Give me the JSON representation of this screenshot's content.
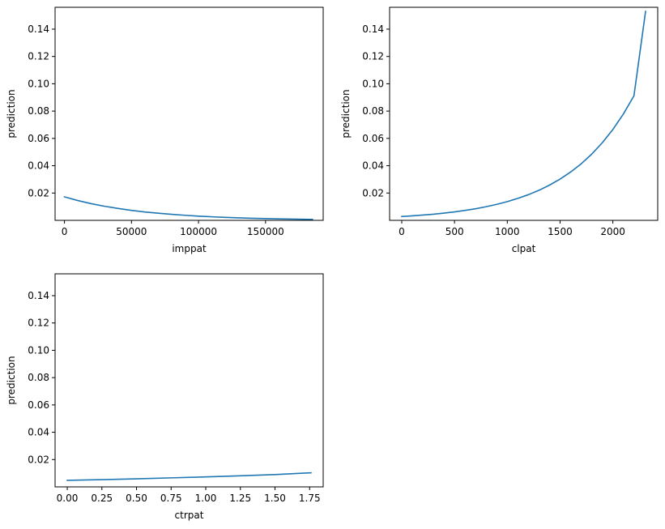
{
  "figure": {
    "line_color": "#1f77b4",
    "background": "#ffffff"
  },
  "chart_data": [
    {
      "type": "line",
      "title": "",
      "xlabel": "imppat",
      "ylabel": "prediction",
      "xlim": [
        -7000,
        193000
      ],
      "ylim": [
        0.0,
        0.156
      ],
      "xticks": [
        0,
        50000,
        100000,
        150000
      ],
      "xtick_labels": [
        "0",
        "50000",
        "100000",
        "150000"
      ],
      "yticks": [
        0.02,
        0.04,
        0.06,
        0.08,
        0.1,
        0.12,
        0.14
      ],
      "ytick_labels": [
        "0.02",
        "0.04",
        "0.06",
        "0.08",
        "0.10",
        "0.12",
        "0.14"
      ],
      "grid": false,
      "series": [
        {
          "x": [
            0,
            10000,
            20000,
            30000,
            40000,
            50000,
            60000,
            70000,
            80000,
            90000,
            100000,
            110000,
            120000,
            130000,
            140000,
            150000,
            160000,
            170000,
            185000
          ],
          "y": [
            0.0172,
            0.0145,
            0.0122,
            0.0103,
            0.0087,
            0.0073,
            0.0061,
            0.0052,
            0.0044,
            0.0037,
            0.0031,
            0.0026,
            0.0022,
            0.0018,
            0.0015,
            0.0013,
            0.0011,
            0.0009,
            0.0007
          ]
        }
      ]
    },
    {
      "type": "line",
      "title": "",
      "xlabel": "clpat",
      "ylabel": "prediction",
      "xlim": [
        -115,
        2425
      ],
      "ylim": [
        0.0,
        0.156
      ],
      "xticks": [
        0,
        500,
        1000,
        1500,
        2000
      ],
      "xtick_labels": [
        "0",
        "500",
        "1000",
        "1500",
        "2000"
      ],
      "yticks": [
        0.02,
        0.04,
        0.06,
        0.08,
        0.1,
        0.12,
        0.14
      ],
      "ytick_labels": [
        "0.02",
        "0.04",
        "0.06",
        "0.08",
        "0.10",
        "0.12",
        "0.14"
      ],
      "grid": false,
      "series": [
        {
          "x": [
            0,
            100,
            200,
            300,
            400,
            500,
            600,
            700,
            800,
            900,
            1000,
            1100,
            1200,
            1300,
            1400,
            1500,
            1600,
            1700,
            1800,
            1900,
            2000,
            2100,
            2200,
            2310
          ],
          "y": [
            0.0028,
            0.0033,
            0.0039,
            0.0045,
            0.0053,
            0.0062,
            0.0073,
            0.0085,
            0.01,
            0.0117,
            0.0137,
            0.0161,
            0.0188,
            0.022,
            0.0258,
            0.0302,
            0.0354,
            0.0414,
            0.0485,
            0.0568,
            0.0665,
            0.0779,
            0.0912,
            0.153
          ]
        }
      ]
    },
    {
      "type": "line",
      "title": "",
      "xlabel": "ctrpat",
      "ylabel": "prediction",
      "xlim": [
        -0.088,
        1.848
      ],
      "ylim": [
        0.0,
        0.156
      ],
      "xticks": [
        0.0,
        0.25,
        0.5,
        0.75,
        1.0,
        1.25,
        1.5,
        1.75
      ],
      "xtick_labels": [
        "0.00",
        "0.25",
        "0.50",
        "0.75",
        "1.00",
        "1.25",
        "1.50",
        "1.75"
      ],
      "yticks": [
        0.02,
        0.04,
        0.06,
        0.08,
        0.1,
        0.12,
        0.14
      ],
      "ytick_labels": [
        "0.02",
        "0.04",
        "0.06",
        "0.08",
        "0.10",
        "0.12",
        "0.14"
      ],
      "grid": false,
      "series": [
        {
          "x": [
            0.0,
            0.25,
            0.5,
            0.75,
            1.0,
            1.25,
            1.5,
            1.76
          ],
          "y": [
            0.0048,
            0.0053,
            0.0059,
            0.0066,
            0.0073,
            0.0081,
            0.009,
            0.0103
          ]
        }
      ]
    }
  ]
}
